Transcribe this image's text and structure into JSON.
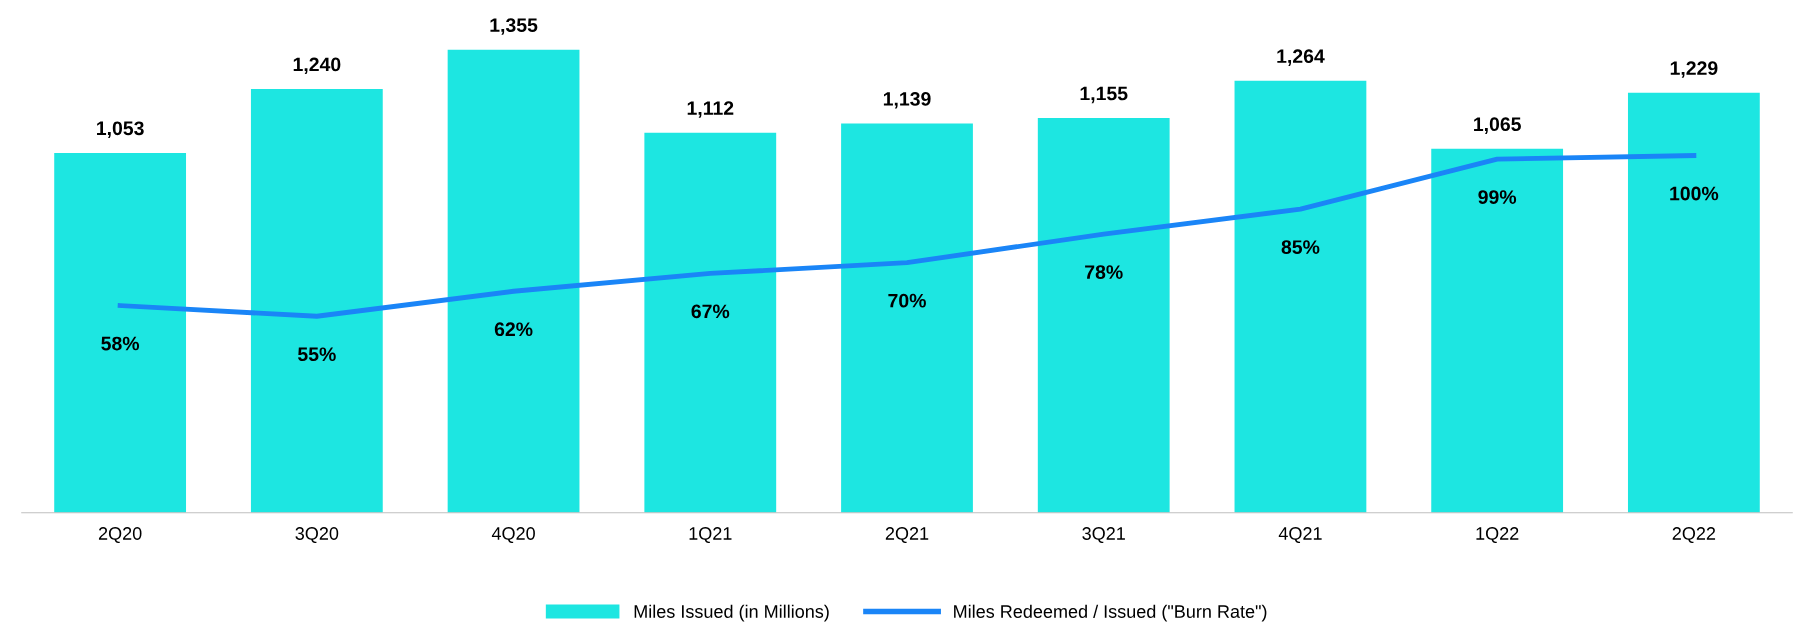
{
  "chart_data": {
    "type": "bar",
    "categories": [
      "2Q20",
      "3Q20",
      "4Q20",
      "1Q21",
      "2Q21",
      "3Q21",
      "4Q21",
      "1Q22",
      "2Q22"
    ],
    "series": [
      {
        "name": "Miles Issued (in Millions)",
        "color": "#1de6e1",
        "values": [
          1053,
          1240,
          1355,
          1112,
          1139,
          1155,
          1264,
          1065,
          1229
        ],
        "value_labels": [
          "1,053",
          "1,240",
          "1,355",
          "1,112",
          "1,139",
          "1,155",
          "1,264",
          "1,065",
          "1,229"
        ]
      },
      {
        "name": "Miles Redeemed / Issued (\"Burn Rate\")",
        "type": "line",
        "axis": "y2",
        "color": "#1a85f7",
        "values": [
          58,
          55,
          62,
          67,
          70,
          78,
          85,
          99,
          100
        ],
        "value_labels": [
          "58%",
          "55%",
          "62%",
          "67%",
          "70%",
          "78%",
          "85%",
          "99%",
          "100%"
        ]
      }
    ],
    "tick_labels": "x",
    "legend": "bottom",
    "grid": false,
    "marker": "none",
    "line_style": "solid"
  }
}
